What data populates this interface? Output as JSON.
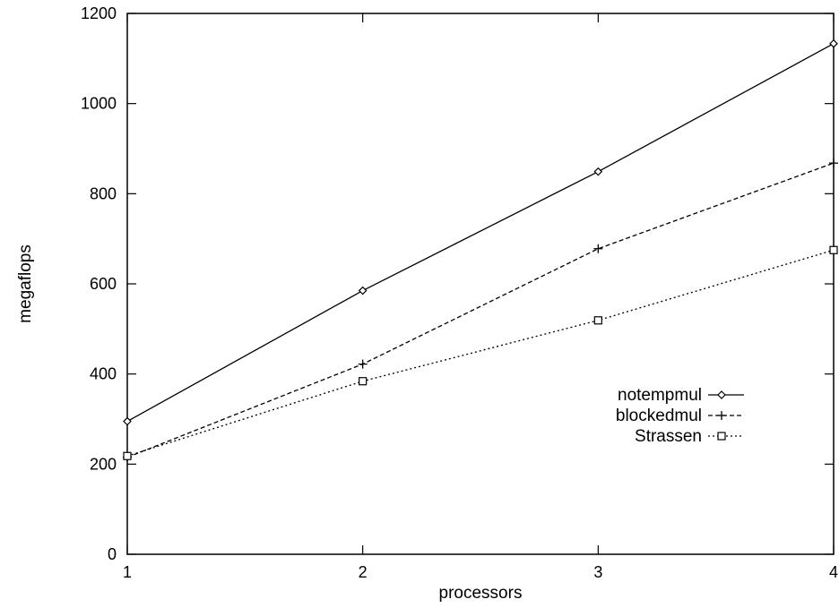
{
  "chart_data": {
    "type": "line",
    "title": "",
    "xlabel": "processors",
    "ylabel": "megaflops",
    "xlim": [
      1,
      4
    ],
    "ylim": [
      0,
      1200
    ],
    "x_ticks": [
      "1",
      "2",
      "3",
      "4"
    ],
    "y_ticks": [
      "0",
      "200",
      "400",
      "600",
      "800",
      "1000",
      "1200"
    ],
    "grid": false,
    "legend_position": "right",
    "series": [
      {
        "name": "notempmul",
        "marker": "diamond",
        "line_style": "solid",
        "x": [
          1,
          2,
          3,
          4
        ],
        "y": [
          295,
          585,
          849,
          1133
        ]
      },
      {
        "name": "blockedmul",
        "marker": "plus",
        "line_style": "dashed",
        "x": [
          1,
          2,
          3,
          4
        ],
        "y": [
          215,
          422,
          678,
          868
        ]
      },
      {
        "name": "Strassen",
        "marker": "square",
        "line_style": "dotted",
        "x": [
          1,
          2,
          3,
          4
        ],
        "y": [
          218,
          384,
          519,
          675
        ]
      }
    ]
  }
}
